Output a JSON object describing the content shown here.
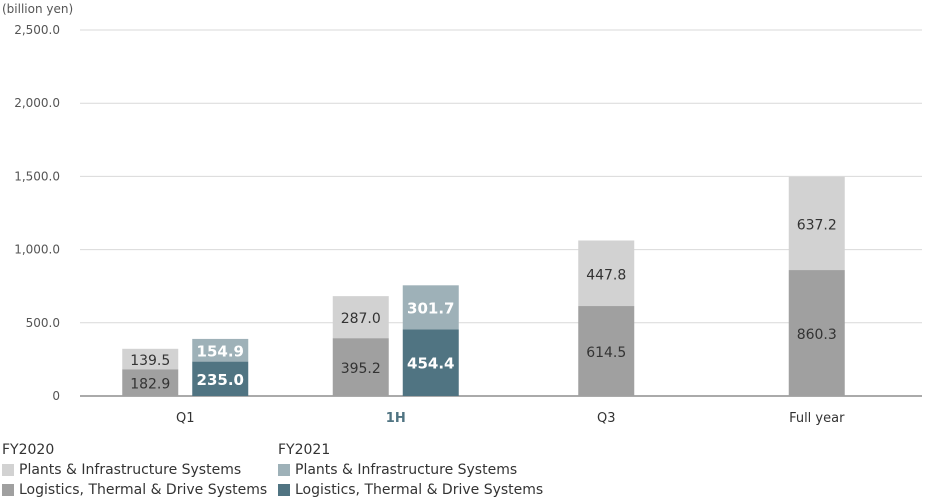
{
  "chart_data": {
    "type": "bar",
    "stacked": true,
    "unit_label": "(billion yen)",
    "categories": [
      "Q1",
      "1H",
      "Q3",
      "Full year"
    ],
    "highlight_category": "1H",
    "ylim": [
      0,
      2500
    ],
    "yticks": [
      {
        "value": 0,
        "label": "0"
      },
      {
        "value": 500,
        "label": "500.0"
      },
      {
        "value": 1000,
        "label": "1,000.0"
      },
      {
        "value": 1500,
        "label": "1,500.0"
      },
      {
        "value": 2000,
        "label": "2,000.0"
      },
      {
        "value": 2500,
        "label": "2,500.0"
      }
    ],
    "grid": true,
    "groups": [
      {
        "name": "FY2020",
        "series": [
          {
            "name": "Logistics, Thermal & Drive Systems",
            "color": "#a0a0a0",
            "values": [
              182.9,
              395.2,
              614.5,
              860.3
            ],
            "labels": [
              "182.9",
              "395.2",
              "614.5",
              "860.3"
            ]
          },
          {
            "name": "Plants & Infrastructure Systems",
            "color": "#d2d2d2",
            "values": [
              139.5,
              287.0,
              447.8,
              637.2
            ],
            "labels": [
              "139.5",
              "287.0",
              "447.8",
              "637.2"
            ]
          }
        ]
      },
      {
        "name": "FY2021",
        "series": [
          {
            "name": "Logistics, Thermal & Drive Systems",
            "color": "#507482",
            "values": [
              235.0,
              454.4,
              null,
              null
            ],
            "labels": [
              "235.0",
              "454.4",
              "",
              ""
            ]
          },
          {
            "name": "Plants & Infrastructure Systems",
            "color": "#9eb1b8",
            "values": [
              154.9,
              301.7,
              null,
              null
            ],
            "labels": [
              "154.9",
              "301.7",
              "",
              ""
            ]
          }
        ]
      }
    ],
    "colors": {
      "axis": "#555555",
      "grid": "#d9d9d9",
      "text": "#333333",
      "highlight": "#507482",
      "label_on_dark": "#ffffff"
    }
  },
  "legend": {
    "fy2020": {
      "title": "FY2020",
      "items": [
        {
          "label": "Plants & Infrastructure Systems",
          "color": "#d2d2d2"
        },
        {
          "label": "Logistics, Thermal & Drive Systems",
          "color": "#a0a0a0"
        }
      ]
    },
    "fy2021": {
      "title": "FY2021",
      "items": [
        {
          "label": "Plants & Infrastructure Systems",
          "color": "#9eb1b8"
        },
        {
          "label": "Logistics, Thermal & Drive Systems",
          "color": "#507482"
        }
      ]
    }
  }
}
